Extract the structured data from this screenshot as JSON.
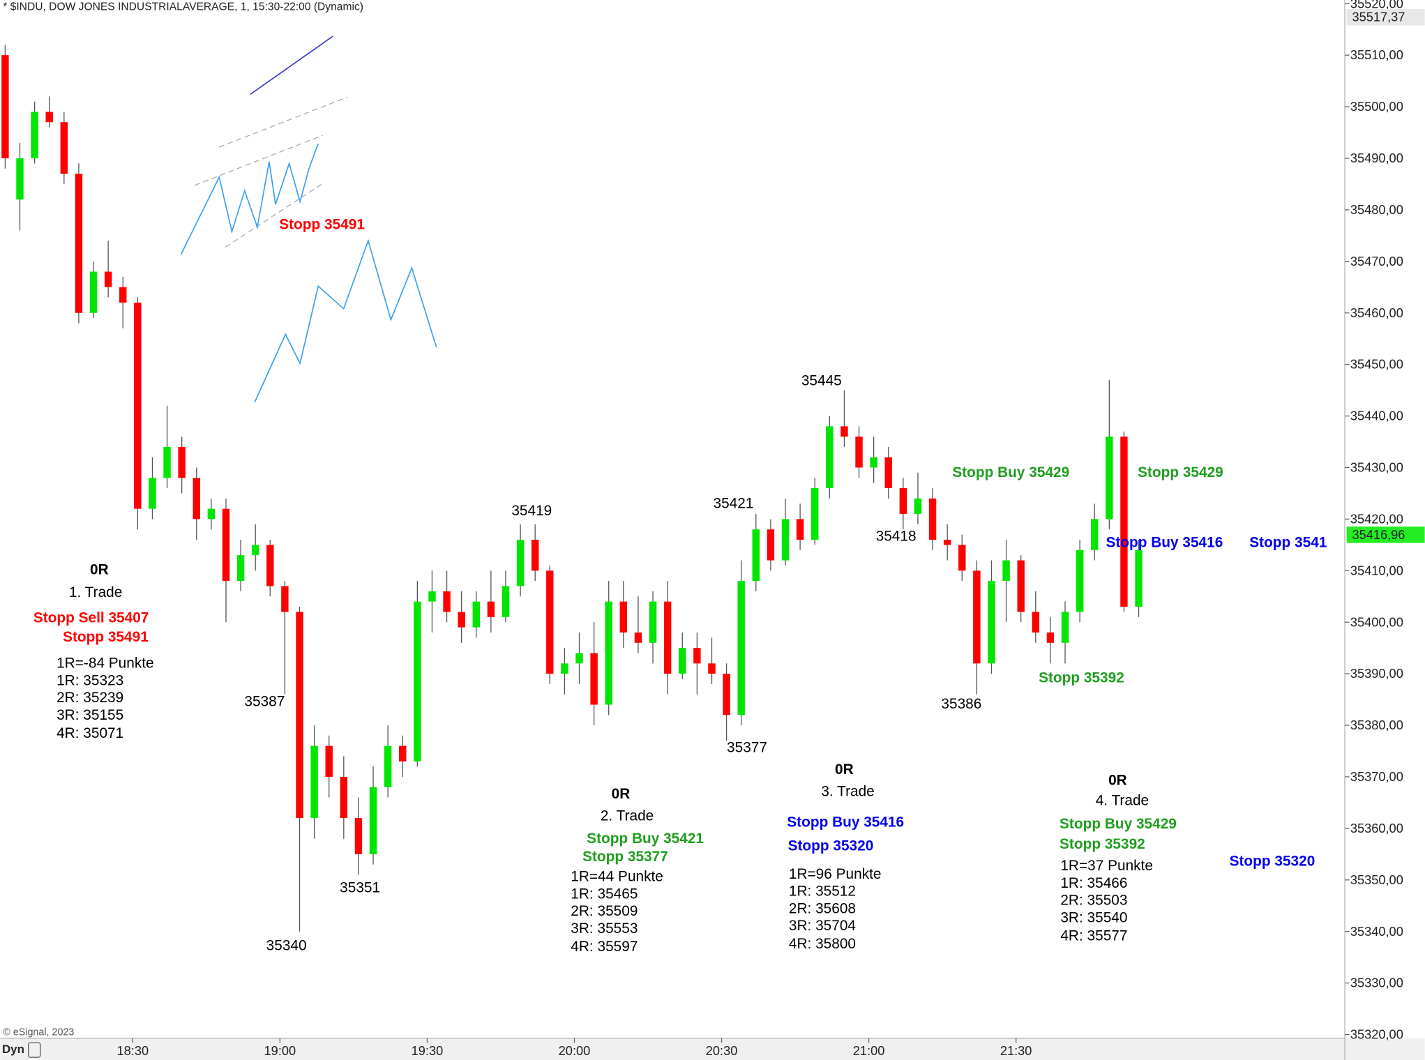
{
  "chart_data": {
    "type": "candlestick",
    "title": "* $INDU, DOW JONES INDUSTRIALAVERAGE, 1, 15:30-22:00 (Dynamic)",
    "copyright": "© eSignal, 2023",
    "mode_label": "Dyn",
    "x": [
      "18:04",
      "18:07",
      "18:10",
      "18:13",
      "18:16",
      "18:19",
      "18:22",
      "18:25",
      "18:28",
      "18:31",
      "18:34",
      "18:37",
      "18:40",
      "18:43",
      "18:46",
      "18:49",
      "18:52",
      "18:55",
      "18:58",
      "19:01",
      "19:04",
      "19:07",
      "19:10",
      "19:13",
      "19:16",
      "19:19",
      "19:22",
      "19:25",
      "19:28",
      "19:31",
      "19:34",
      "19:37",
      "19:40",
      "19:43",
      "19:46",
      "19:49",
      "19:52",
      "19:55",
      "19:58",
      "20:01",
      "20:04",
      "20:07",
      "20:10",
      "20:13",
      "20:16",
      "20:19",
      "20:22",
      "20:25",
      "20:28",
      "20:31",
      "20:34",
      "20:37",
      "20:40",
      "20:43",
      "20:46",
      "20:49",
      "20:52",
      "20:55",
      "20:58",
      "21:01",
      "21:04",
      "21:07",
      "21:10",
      "21:13",
      "21:16",
      "21:19",
      "21:22",
      "21:25",
      "21:28",
      "21:31",
      "21:34",
      "21:37",
      "21:40",
      "21:43",
      "21:46",
      "21:49",
      "21:52",
      "21:55"
    ],
    "open": [
      35510,
      35482,
      35490,
      35499,
      35497,
      35487,
      35460,
      35468,
      35465,
      35462,
      35422,
      35428,
      35434,
      35428,
      35420,
      35422,
      35408,
      35413,
      35415,
      35407,
      35402,
      35362,
      35376,
      35370,
      35362,
      35355,
      35368,
      35376,
      35373,
      35404,
      35406,
      35402,
      35399,
      35404,
      35401,
      35407,
      35416,
      35410,
      35390,
      35392,
      35394,
      35384,
      35404,
      35398,
      35396,
      35404,
      35390,
      35395,
      35392,
      35390,
      35382,
      35408,
      35418,
      35412,
      35420,
      35416,
      35426,
      35438,
      35436,
      35430,
      35432,
      35426,
      35421,
      35424,
      35416,
      35415,
      35410,
      35392,
      35408,
      35412,
      35402,
      35398,
      35396,
      35402,
      35414,
      35420,
      35436,
      35403
    ],
    "high": [
      35512,
      35493,
      35501,
      35502,
      35499,
      35489,
      35470,
      35474,
      35467,
      35463,
      35432,
      35442,
      35436,
      35430,
      35424,
      35424,
      35416,
      35419,
      35416,
      35408,
      35403,
      35380,
      35378,
      35374,
      35366,
      35372,
      35380,
      35378,
      35408,
      35410,
      35410,
      35406,
      35406,
      35410,
      35410,
      35419,
      35419,
      35411,
      35395,
      35398,
      35400,
      35408,
      35408,
      35405,
      35406,
      35408,
      35398,
      35398,
      35397,
      35392,
      35412,
      35421,
      35420,
      35424,
      35423,
      35428,
      35440,
      35445,
      35438,
      35436,
      35434,
      35428,
      35429,
      35426,
      35419,
      35417,
      35412,
      35412,
      35416,
      35413,
      35406,
      35401,
      35404,
      35416,
      35423,
      35447,
      35437,
      35416
    ],
    "low": [
      35488,
      35476,
      35489,
      35496,
      35485,
      35458,
      35459,
      35463,
      35457,
      35418,
      35420,
      35426,
      35425,
      35416,
      35418,
      35400,
      35406,
      35410,
      35405,
      35386,
      35340,
      35358,
      35366,
      35358,
      35351,
      35353,
      35366,
      35370,
      35372,
      35398,
      35400,
      35396,
      35397,
      35398,
      35400,
      35405,
      35408,
      35388,
      35386,
      35388,
      35380,
      35382,
      35395,
      35394,
      35392,
      35386,
      35389,
      35386,
      35388,
      35377,
      35380,
      35406,
      35410,
      35411,
      35414,
      35415,
      35424,
      35434,
      35428,
      35427,
      35424,
      35418,
      35419,
      35414,
      35412,
      35408,
      35386,
      35390,
      35400,
      35400,
      35396,
      35392,
      35392,
      35400,
      35412,
      35418,
      35402,
      35401
    ],
    "close": [
      35490,
      35490,
      35499,
      35497,
      35487,
      35460,
      35468,
      35465,
      35462,
      35422,
      35428,
      35434,
      35428,
      35420,
      35422,
      35408,
      35413,
      35415,
      35407,
      35402,
      35362,
      35376,
      35370,
      35362,
      35355,
      35368,
      35376,
      35373,
      35404,
      35406,
      35402,
      35399,
      35404,
      35401,
      35407,
      35416,
      35410,
      35390,
      35392,
      35394,
      35384,
      35404,
      35398,
      35396,
      35404,
      35390,
      35395,
      35392,
      35390,
      35382,
      35408,
      35418,
      35412,
      35420,
      35416,
      35426,
      35438,
      35436,
      35430,
      35432,
      35426,
      35421,
      35424,
      35416,
      35415,
      35410,
      35392,
      35408,
      35412,
      35402,
      35398,
      35396,
      35402,
      35414,
      35420,
      35436,
      35403,
      35414
    ],
    "up_color": "#00e600",
    "down_color": "#ff0000",
    "xlim": [
      "18:03",
      "22:37"
    ],
    "xticks": [
      "18:30",
      "19:00",
      "19:30",
      "20:00",
      "20:30",
      "21:00",
      "21:30"
    ],
    "ylim": [
      35320,
      35520
    ],
    "yticks": [
      {
        "value": 35520,
        "label": "35520,00"
      },
      {
        "value": 35510,
        "label": "35510,00"
      },
      {
        "value": 35500,
        "label": "35500,00"
      },
      {
        "value": 35490,
        "label": "35490,00"
      },
      {
        "value": 35480,
        "label": "35480,00"
      },
      {
        "value": 35470,
        "label": "35470,00"
      },
      {
        "value": 35460,
        "label": "35460,00"
      },
      {
        "value": 35450,
        "label": "35450,00"
      },
      {
        "value": 35440,
        "label": "35440,00"
      },
      {
        "value": 35430,
        "label": "35430,00"
      },
      {
        "value": 35420,
        "label": "35420,00"
      },
      {
        "value": 35410,
        "label": "35410,00"
      },
      {
        "value": 35400,
        "label": "35400,00"
      },
      {
        "value": 35390,
        "label": "35390,00"
      },
      {
        "value": 35380,
        "label": "35380,00"
      },
      {
        "value": 35370,
        "label": "35370,00"
      },
      {
        "value": 35360,
        "label": "35360,00"
      },
      {
        "value": 35350,
        "label": "35350,00"
      },
      {
        "value": 35340,
        "label": "35340,00"
      },
      {
        "value": 35330,
        "label": "35330,00"
      },
      {
        "value": 35320,
        "label": "35320,00"
      }
    ],
    "grid": false,
    "price_markers": [
      {
        "value": 35517.37,
        "label": "35517,37",
        "color": "#e8e8e8"
      },
      {
        "value": 35416.96,
        "label": "35416,96",
        "color": "#22ee22"
      }
    ],
    "annotations": [
      {
        "text": "Stopp 35491",
        "color": "#ff0000",
        "bold": true
      },
      {
        "text": "0R",
        "color": "#000000",
        "bold": true
      },
      {
        "text": "1. Trade",
        "color": "#000000",
        "bold": false
      },
      {
        "text": "Stopp Sell 35407",
        "color": "#ff0000",
        "bold": true
      },
      {
        "text": "Stopp 35491",
        "color": "#ff0000",
        "bold": true
      },
      {
        "text": "1R=-84 Punkte",
        "color": "#000000",
        "bold": false
      },
      {
        "text": "1R: 35323",
        "color": "#000000",
        "bold": false
      },
      {
        "text": "2R: 35239",
        "color": "#000000",
        "bold": false
      },
      {
        "text": "3R: 35155",
        "color": "#000000",
        "bold": false
      },
      {
        "text": "4R: 35071",
        "color": "#000000",
        "bold": false
      },
      {
        "text": "35387",
        "color": "#000000",
        "bold": false
      },
      {
        "text": "35340",
        "color": "#000000",
        "bold": false
      },
      {
        "text": "35351",
        "color": "#000000",
        "bold": false
      },
      {
        "text": "35419",
        "color": "#000000",
        "bold": false
      },
      {
        "text": "35421",
        "color": "#000000",
        "bold": false
      },
      {
        "text": "35377",
        "color": "#000000",
        "bold": false
      },
      {
        "text": "35445",
        "color": "#000000",
        "bold": false
      },
      {
        "text": "35418",
        "color": "#000000",
        "bold": false
      },
      {
        "text": "35386",
        "color": "#000000",
        "bold": false
      },
      {
        "text": "0R",
        "color": "#000000",
        "bold": true
      },
      {
        "text": "2. Trade",
        "color": "#000000",
        "bold": false
      },
      {
        "text": "Stopp Buy 35421",
        "color": "#1f9e1f",
        "bold": true
      },
      {
        "text": "Stopp 35377",
        "color": "#1f9e1f",
        "bold": true
      },
      {
        "text": "1R=44 Punkte",
        "color": "#000000",
        "bold": false
      },
      {
        "text": "1R: 35465",
        "color": "#000000",
        "bold": false
      },
      {
        "text": "2R: 35509",
        "color": "#000000",
        "bold": false
      },
      {
        "text": "3R: 35553",
        "color": "#000000",
        "bold": false
      },
      {
        "text": "4R: 35597",
        "color": "#000000",
        "bold": false
      },
      {
        "text": "0R",
        "color": "#000000",
        "bold": true
      },
      {
        "text": "3. Trade",
        "color": "#000000",
        "bold": false
      },
      {
        "text": "Stopp Buy 35416",
        "color": "#0000ee",
        "bold": true
      },
      {
        "text": "Stopp 35320",
        "color": "#0000ee",
        "bold": true
      },
      {
        "text": "1R=96 Punkte",
        "color": "#000000",
        "bold": false
      },
      {
        "text": "1R: 35512",
        "color": "#000000",
        "bold": false
      },
      {
        "text": "2R: 35608",
        "color": "#000000",
        "bold": false
      },
      {
        "text": "3R: 35704",
        "color": "#000000",
        "bold": false
      },
      {
        "text": "4R: 35800",
        "color": "#000000",
        "bold": false
      },
      {
        "text": "Stopp Buy 35429",
        "color": "#1f9e1f",
        "bold": true
      },
      {
        "text": "Stopp 35429",
        "color": "#1f9e1f",
        "bold": true
      },
      {
        "text": "Stopp Buy 35416",
        "color": "#0000ee",
        "bold": true
      },
      {
        "text": "Stopp 3541",
        "color": "#0000ee",
        "bold": true
      },
      {
        "text": "Stopp 35392",
        "color": "#1f9e1f",
        "bold": true
      },
      {
        "text": "0R",
        "color": "#000000",
        "bold": true
      },
      {
        "text": "4. Trade",
        "color": "#000000",
        "bold": false
      },
      {
        "text": "Stopp Buy 35429",
        "color": "#1f9e1f",
        "bold": true
      },
      {
        "text": "Stopp 35392",
        "color": "#1f9e1f",
        "bold": true
      },
      {
        "text": "1R=37 Punkte",
        "color": "#000000",
        "bold": false
      },
      {
        "text": "1R: 35466",
        "color": "#000000",
        "bold": false
      },
      {
        "text": "2R: 35503",
        "color": "#000000",
        "bold": false
      },
      {
        "text": "3R: 35540",
        "color": "#000000",
        "bold": false
      },
      {
        "text": "4R: 35577",
        "color": "#000000",
        "bold": false
      },
      {
        "text": "Stopp 35320",
        "color": "#0000ee",
        "bold": true
      }
    ]
  }
}
